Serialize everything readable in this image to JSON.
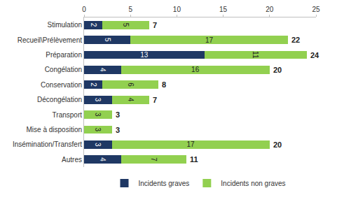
{
  "chart_data": {
    "type": "bar",
    "orientation": "horizontal",
    "stacked": true,
    "data_labels": true,
    "grid": false,
    "legend": "bottom",
    "categories": [
      "Stimulation",
      "Recueil\\Prélèvement",
      "Préparation",
      "Congélation",
      "Conservation",
      "Décongélation",
      "Transport",
      "Mise à disposition",
      "Insémination/Transfert",
      "Autres"
    ],
    "series": [
      {
        "name": "Incidents graves",
        "color": "#1f3864",
        "values": [
          2,
          5,
          13,
          4,
          2,
          3,
          null,
          null,
          3,
          4
        ]
      },
      {
        "name": "Incidents non graves",
        "color": "#92d050",
        "values": [
          5,
          17,
          11,
          16,
          6,
          4,
          3,
          3,
          17,
          7
        ]
      }
    ],
    "totals": [
      7,
      22,
      24,
      20,
      8,
      7,
      3,
      3,
      20,
      11
    ],
    "xlim": [
      0,
      25
    ],
    "xticks": [
      0,
      5,
      10,
      15,
      20,
      25
    ]
  }
}
